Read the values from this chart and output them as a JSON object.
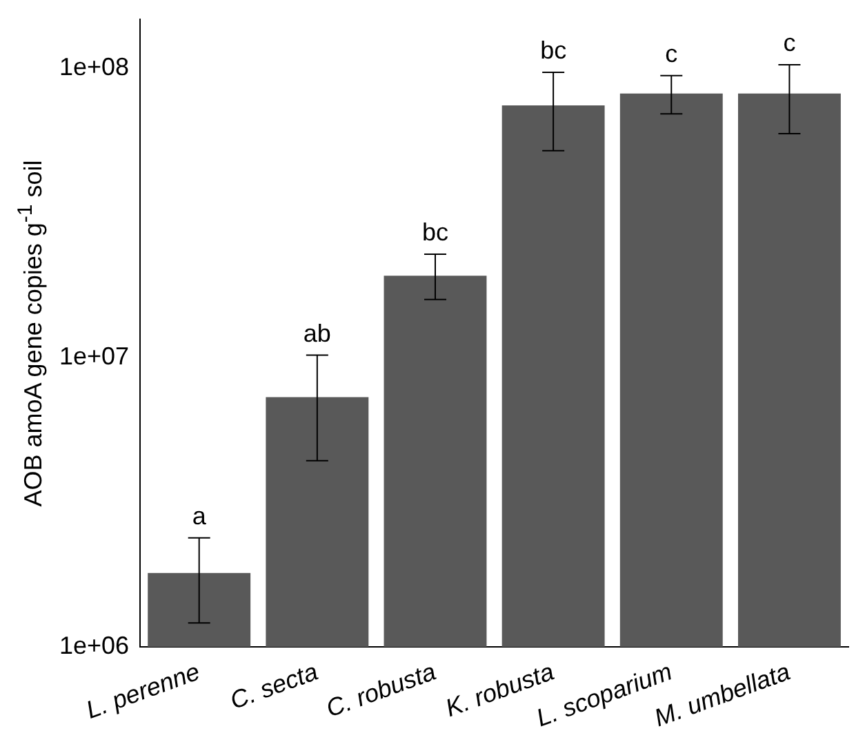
{
  "chart_data": {
    "type": "bar",
    "ylabel": "AOB amoA gene copies g$^{-1}$ soil",
    "categories": [
      "L. perenne",
      "C. secta",
      "C. robusta",
      "K. robusta",
      "L. scoparium",
      "M. umbellata"
    ],
    "values": [
      1800000,
      7300000,
      19200000,
      74600000,
      82000000,
      82000000
    ],
    "errors": [
      [
        1210000,
        2380000
      ],
      [
        4400000,
        10200000
      ],
      [
        15900000,
        22800000
      ],
      [
        52000000,
        97000000
      ],
      [
        69700000,
        94500000
      ],
      [
        59500000,
        103000000
      ]
    ],
    "color": "#595959",
    "log": true,
    "ylim": [
      1000000,
      148000000
    ],
    "yticks": [
      {
        "value": 1000000,
        "label": "1e+06"
      },
      {
        "value": 10000000,
        "label": "1e+07"
      },
      {
        "value": 100000000,
        "label": "1e+08"
      }
    ],
    "grid": false,
    "legend": false,
    "annotations": [
      {
        "text": "a",
        "x": "L. perenne",
        "y": 2380000
      },
      {
        "text": "ab",
        "x": "C. secta",
        "y": 10200000
      },
      {
        "text": "bc",
        "x": "C. robusta",
        "y": 22800000
      },
      {
        "text": "bc",
        "x": "K. robusta",
        "y": 97000000
      },
      {
        "text": "c",
        "x": "L. scoparium",
        "y": 94500000
      },
      {
        "text": "c",
        "x": "M. umbellata",
        "y": 103000000
      }
    ]
  }
}
